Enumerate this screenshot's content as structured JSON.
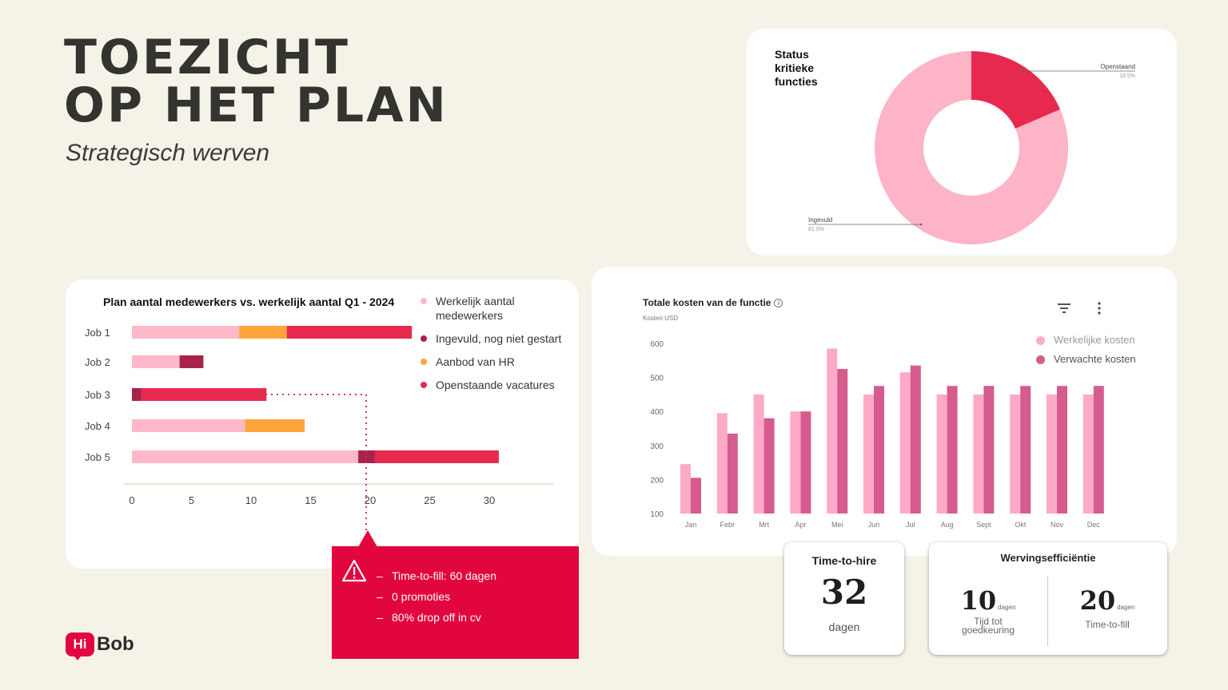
{
  "page": {
    "title_line1": "TOEZICHT",
    "title_line2": "OP HET PLAN",
    "subtitle": "Strategisch werven",
    "brand_color": "#e2063f",
    "background": "#f5f2e8"
  },
  "donut_card": {
    "title": "Status kritieke functies",
    "chart_data": {
      "type": "pie",
      "variant": "donut",
      "slices": [
        {
          "label": "Openstaand",
          "value": 18.5,
          "value_label": "18.5%",
          "color": "#e8294f"
        },
        {
          "label": "Ingevuld",
          "value": 81.5,
          "value_label": "81.5%",
          "color": "#fdb4c7"
        }
      ]
    }
  },
  "bar_card": {
    "title": "Plan aantal medewerkers vs. werkelijk aantal Q1 - 2024",
    "legend": [
      {
        "label": "Werkelijk aantal medewerkers",
        "color": "#fdb8c9"
      },
      {
        "label": "Ingevuld, nog niet gestart",
        "color": "#a8234a"
      },
      {
        "label": "Aanbod van HR",
        "color": "#fda53a"
      },
      {
        "label": "Openstaande vacatures",
        "color": "#e8294f"
      }
    ],
    "chart_data": {
      "type": "bar",
      "orientation": "horizontal",
      "stacked": true,
      "categories": [
        "Job 1",
        "Job 2",
        "Job 3",
        "Job 4",
        "Job 5"
      ],
      "xlim": [
        0,
        30
      ],
      "xticks": [
        0,
        5,
        10,
        15,
        20,
        25,
        30
      ],
      "series": [
        {
          "name": "Werkelijk aantal medewerkers",
          "color": "#fdb8c9",
          "values": [
            9,
            4,
            0,
            9.5,
            19
          ]
        },
        {
          "name": "Ingevuld, nog niet gestart",
          "color": "#a8234a",
          "values": [
            0,
            2,
            0.8,
            0,
            1.4
          ]
        },
        {
          "name": "Aanbod van HR",
          "color": "#fda53a",
          "values": [
            4,
            0,
            0,
            5,
            0
          ]
        },
        {
          "name": "Openstaande vacatures",
          "color": "#e8294f",
          "values": [
            10.5,
            0,
            10.5,
            0,
            10.4
          ]
        }
      ]
    }
  },
  "alert": {
    "items": [
      "Time-to-fill: 60 dagen",
      "0 promoties",
      "80% drop off in cv"
    ],
    "dash": "–"
  },
  "cost_card": {
    "title": "Totale kosten van de functie",
    "info_symbol": "i",
    "subtitle": "Kosten USD",
    "icons": [
      "filter-icon",
      "more-vertical-icon"
    ],
    "legend": [
      {
        "label": "Werkelijke kosten",
        "color": "#fdaac8"
      },
      {
        "label": "Verwachte kosten",
        "color": "#d65b8e"
      }
    ],
    "chart_data": {
      "type": "bar",
      "categories": [
        "Jan",
        "Febr",
        "Mrt",
        "Apr",
        "Mei",
        "Jun",
        "Jul",
        "Aug",
        "Sept",
        "Okt",
        "Nov",
        "Dec"
      ],
      "ylim": [
        100,
        600
      ],
      "yticks": [
        100,
        200,
        300,
        400,
        500,
        600
      ],
      "series": [
        {
          "name": "Werkelijke kosten",
          "color": "#fdaac8",
          "values": [
            245,
            395,
            450,
            400,
            585,
            450,
            515,
            450,
            450,
            450,
            450,
            450
          ]
        },
        {
          "name": "Verwachte kosten",
          "color": "#d65b8e",
          "values": [
            205,
            335,
            380,
            400,
            525,
            475,
            535,
            475,
            475,
            475,
            475,
            475
          ]
        }
      ]
    }
  },
  "kpi_hire": {
    "title": "Time-to-hire",
    "value": "32",
    "unit": "dagen"
  },
  "kpi_eff": {
    "title": "Wervingsefficiëntie",
    "left": {
      "value": "10",
      "unit": "dagen",
      "label": "Tijd tot goedkeuring"
    },
    "right": {
      "value": "20",
      "unit": "dagen",
      "label": "Time-to-fill"
    }
  },
  "logo": {
    "hi": "Hi",
    "bob": "Bob"
  }
}
